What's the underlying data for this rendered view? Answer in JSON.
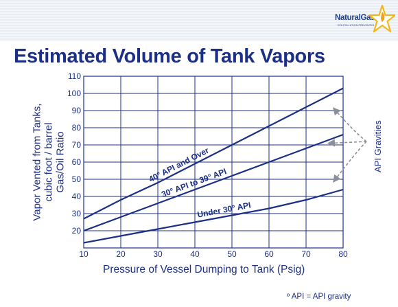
{
  "header": {
    "logo_text": "NaturalGas",
    "logo_subtext": "EPA POLLUTION PREVENTER",
    "title": "Estimated Volume of Tank Vapors"
  },
  "footnote": "º API = API gravity",
  "colors": {
    "accent": "#1c2f86",
    "line": "#1c2f86",
    "arrow": "#8a8f9a",
    "grid": "#1c2f86"
  },
  "chart_data": {
    "type": "line",
    "xlabel": "Pressure of Vessel Dumping to Tank  (Psig)",
    "ylabel": [
      "Vapor Vented from Tanks,",
      "cubic foot / barrel",
      "Gas/Oil Ratio"
    ],
    "xlim": [
      10,
      80
    ],
    "ylim": [
      10,
      110
    ],
    "x_ticks": [
      10,
      20,
      30,
      40,
      50,
      60,
      70,
      80
    ],
    "y_ticks": [
      10,
      20,
      30,
      40,
      50,
      60,
      70,
      80,
      90,
      100,
      110
    ],
    "grid": true,
    "series": [
      {
        "name": "40° API and Over",
        "x": [
          10,
          20,
          30,
          40,
          50,
          60,
          70,
          80
        ],
        "values": [
          27,
          38,
          48,
          59,
          70,
          81,
          92,
          103
        ]
      },
      {
        "name": "30° API to 39° API",
        "x": [
          10,
          20,
          30,
          40,
          50,
          60,
          70,
          80
        ],
        "values": [
          20,
          28,
          36,
          44,
          52,
          60,
          68,
          76
        ]
      },
      {
        "name": "Under 30° API",
        "x": [
          10,
          20,
          30,
          40,
          50,
          60,
          70,
          80
        ],
        "values": [
          13,
          17,
          21,
          25,
          29,
          33,
          38,
          44
        ]
      }
    ],
    "annotation": "API Gravities"
  }
}
